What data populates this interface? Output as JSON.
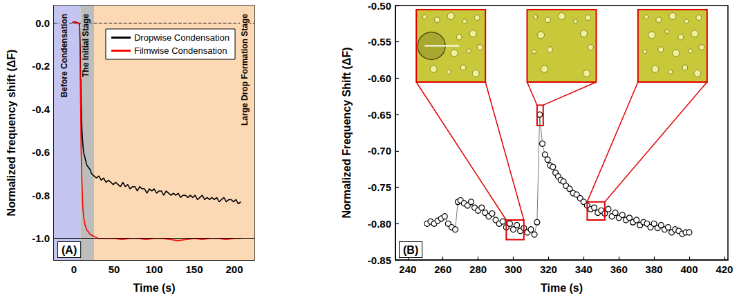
{
  "chart_data": [
    {
      "type": "line",
      "panel_label": "(A)",
      "x_label": "Time (s)",
      "y_label": "Normalized frequency shift (ΔF)",
      "xlim": [
        -25,
        225
      ],
      "xticks": [
        0,
        50,
        100,
        150,
        200
      ],
      "ylim": [
        -1.1,
        0.08
      ],
      "yticks": [
        {
          "value": 0,
          "label": "0.0"
        },
        -0.2,
        -0.4,
        -0.6,
        -0.8,
        {
          "value": -1,
          "label": "-1.0"
        }
      ],
      "legend": "upper right",
      "regions": [
        {
          "label": "Before Condensation",
          "start": -25,
          "end": 8,
          "color": "#c5c5f2"
        },
        {
          "label": "The Initial Stage",
          "start": 8,
          "end": 25,
          "color": "#bdbdbd"
        },
        {
          "label": "Large Drop Formation Stage",
          "start": 25,
          "end": 225,
          "color": "#fcd9b5"
        }
      ],
      "reference_lines": [
        {
          "y": 0,
          "line_style": "dashed"
        },
        {
          "y": -1,
          "line_style": "solid"
        }
      ],
      "series": [
        {
          "name": "Dropwise Condensation",
          "color": "#000000",
          "x": [
            -2,
            0,
            5,
            7,
            8,
            9,
            10,
            11,
            12,
            14,
            16,
            18,
            20,
            22,
            25,
            28,
            31,
            34,
            37,
            40,
            43,
            46,
            49,
            52,
            55,
            58,
            61,
            64,
            67,
            70,
            73,
            76,
            79,
            82,
            85,
            88,
            91,
            94,
            97,
            100,
            103,
            106,
            109,
            112,
            115,
            118,
            121,
            124,
            127,
            130,
            133,
            136,
            139,
            142,
            145,
            148,
            151,
            154,
            157,
            160,
            163,
            166,
            169,
            172,
            175,
            178,
            181,
            184,
            187,
            190,
            193,
            196,
            199,
            202,
            205,
            208
          ],
          "values": [
            0.0,
            0.005,
            0.0,
            -0.01,
            -0.15,
            -0.38,
            -0.5,
            -0.56,
            -0.6,
            -0.63,
            -0.66,
            -0.67,
            -0.68,
            -0.7,
            -0.71,
            -0.72,
            -0.71,
            -0.73,
            -0.72,
            -0.74,
            -0.73,
            -0.74,
            -0.75,
            -0.74,
            -0.75,
            -0.76,
            -0.74,
            -0.76,
            -0.75,
            -0.77,
            -0.76,
            -0.76,
            -0.78,
            -0.76,
            -0.77,
            -0.77,
            -0.79,
            -0.77,
            -0.78,
            -0.77,
            -0.79,
            -0.78,
            -0.78,
            -0.8,
            -0.78,
            -0.79,
            -0.8,
            -0.79,
            -0.8,
            -0.79,
            -0.81,
            -0.8,
            -0.8,
            -0.81,
            -0.8,
            -0.81,
            -0.8,
            -0.82,
            -0.81,
            -0.8,
            -0.82,
            -0.81,
            -0.82,
            -0.81,
            -0.82,
            -0.81,
            -0.83,
            -0.82,
            -0.81,
            -0.83,
            -0.82,
            -0.82,
            -0.83,
            -0.82,
            -0.84,
            -0.83
          ]
        },
        {
          "name": "Filmwise Condensation",
          "color": "#ff0000",
          "x": [
            -2,
            0,
            5,
            7,
            8,
            9,
            10,
            11,
            12,
            14,
            16,
            18,
            20,
            22,
            25,
            30,
            40,
            50,
            60,
            70,
            80,
            90,
            100,
            110,
            120,
            130,
            140,
            150,
            160,
            170,
            180,
            190,
            200,
            208
          ],
          "values": [
            0.0,
            0.005,
            0.0,
            -0.01,
            -0.3,
            -0.6,
            -0.75,
            -0.85,
            -0.9,
            -0.94,
            -0.96,
            -0.97,
            -0.98,
            -0.985,
            -0.99,
            -1.0,
            -1.0,
            -1.0,
            -1.005,
            -1.0,
            -1.0,
            -1.005,
            -1.0,
            -1.0,
            -1.005,
            -1.01,
            -1.005,
            -1.0,
            -1.005,
            -1.0,
            -1.0,
            -1.005,
            -1.0,
            -1.0
          ]
        }
      ]
    },
    {
      "type": "line",
      "marker": "circle",
      "panel_label": "(B)",
      "x_label": "Time (s)",
      "y_label": "Normalized Frequency Shift (ΔF)",
      "xlim": [
        233,
        422
      ],
      "xticks": [
        240,
        260,
        280,
        300,
        320,
        340,
        360,
        380,
        400,
        420
      ],
      "ylim": [
        -0.85,
        -0.5
      ],
      "yticks": [
        {
          "value": -0.85,
          "label": "-0.85"
        },
        {
          "value": -0.8,
          "label": "-0.80"
        },
        -0.75,
        {
          "value": -0.7,
          "label": "-0.70"
        },
        -0.65,
        {
          "value": -0.6,
          "label": "-0.60"
        },
        -0.55,
        {
          "value": -0.5,
          "label": "-0.50"
        }
      ],
      "insets": [
        {
          "x": [
            296,
            306
          ],
          "y": [
            -0.822,
            -0.795
          ]
        },
        {
          "x": [
            313.5,
            317
          ],
          "y": [
            -0.665,
            -0.637
          ]
        },
        {
          "x": [
            342,
            352
          ],
          "y": [
            -0.795,
            -0.77
          ]
        }
      ],
      "series": [
        {
          "color": "#000000",
          "x": [
            251,
            253,
            255,
            257,
            259,
            261,
            263,
            265,
            267,
            268.5,
            270,
            272,
            274,
            276,
            278,
            280,
            282,
            284,
            286,
            288,
            290,
            292,
            294,
            296,
            298,
            300,
            302,
            304,
            306,
            308,
            310,
            312,
            313.5,
            315,
            316.5,
            318,
            319.5,
            321,
            322.5,
            324,
            325.5,
            327,
            328.5,
            330,
            332,
            334,
            336,
            338,
            340,
            342,
            344,
            346,
            348,
            350,
            352,
            354,
            356,
            358,
            360,
            362,
            364,
            366,
            368,
            370,
            372,
            374,
            376,
            378,
            380,
            382,
            384,
            386,
            388,
            390,
            392,
            394,
            396,
            398,
            400
          ],
          "values": [
            -0.8,
            -0.797,
            -0.8,
            -0.796,
            -0.793,
            -0.79,
            -0.8,
            -0.805,
            -0.808,
            -0.77,
            -0.768,
            -0.772,
            -0.775,
            -0.77,
            -0.778,
            -0.782,
            -0.778,
            -0.785,
            -0.79,
            -0.786,
            -0.795,
            -0.8,
            -0.797,
            -0.805,
            -0.8,
            -0.808,
            -0.802,
            -0.81,
            -0.806,
            -0.812,
            -0.808,
            -0.815,
            -0.798,
            -0.65,
            -0.69,
            -0.705,
            -0.712,
            -0.72,
            -0.722,
            -0.73,
            -0.735,
            -0.74,
            -0.742,
            -0.748,
            -0.752,
            -0.758,
            -0.76,
            -0.765,
            -0.77,
            -0.775,
            -0.78,
            -0.778,
            -0.785,
            -0.782,
            -0.786,
            -0.78,
            -0.79,
            -0.785,
            -0.792,
            -0.788,
            -0.795,
            -0.792,
            -0.798,
            -0.795,
            -0.802,
            -0.798,
            -0.8,
            -0.805,
            -0.8,
            -0.806,
            -0.802,
            -0.808,
            -0.805,
            -0.812,
            -0.808,
            -0.81,
            -0.814,
            -0.812,
            -0.812
          ]
        }
      ]
    }
  ]
}
